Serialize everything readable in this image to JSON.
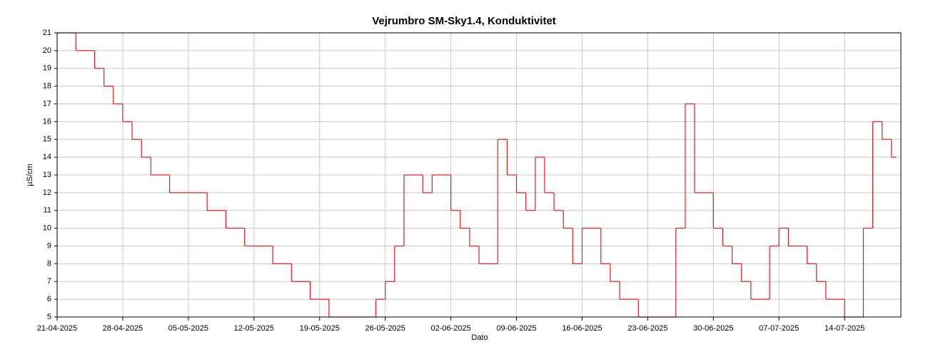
{
  "chart_data": {
    "type": "line",
    "title": "Vejrumbro SM-Sky1.4, Konduktivitet",
    "xlabel": "Dato",
    "ylabel": "µS/cm",
    "step": true,
    "grid": true,
    "x": [
      "2025-04-21",
      "2025-04-22",
      "2025-04-23",
      "2025-04-24",
      "2025-04-25",
      "2025-04-26",
      "2025-04-27",
      "2025-04-28",
      "2025-04-29",
      "2025-04-30",
      "2025-05-01",
      "2025-05-02",
      "2025-05-03",
      "2025-05-04",
      "2025-05-05",
      "2025-05-06",
      "2025-05-07",
      "2025-05-08",
      "2025-05-09",
      "2025-05-10",
      "2025-05-11",
      "2025-05-12",
      "2025-05-13",
      "2025-05-14",
      "2025-05-15",
      "2025-05-16",
      "2025-05-17",
      "2025-05-18",
      "2025-05-19",
      "2025-05-20",
      "2025-05-21",
      "2025-05-22",
      "2025-05-23",
      "2025-05-24",
      "2025-05-25",
      "2025-05-26",
      "2025-05-27",
      "2025-05-28",
      "2025-05-29",
      "2025-05-30",
      "2025-05-31",
      "2025-06-01",
      "2025-06-02",
      "2025-06-03",
      "2025-06-04",
      "2025-06-05",
      "2025-06-06",
      "2025-06-07",
      "2025-06-08",
      "2025-06-09",
      "2025-06-10",
      "2025-06-11",
      "2025-06-12",
      "2025-06-13",
      "2025-06-14",
      "2025-06-15",
      "2025-06-16",
      "2025-06-17",
      "2025-06-18",
      "2025-06-19",
      "2025-06-20",
      "2025-06-21",
      "2025-06-22",
      "2025-06-23",
      "2025-06-24",
      "2025-06-25",
      "2025-06-26",
      "2025-06-27",
      "2025-06-28",
      "2025-06-29",
      "2025-06-30",
      "2025-07-01",
      "2025-07-02",
      "2025-07-03",
      "2025-07-04",
      "2025-07-05",
      "2025-07-06",
      "2025-07-07",
      "2025-07-08",
      "2025-07-09",
      "2025-07-10",
      "2025-07-11",
      "2025-07-12",
      "2025-07-13",
      "2025-07-14",
      "2025-07-15",
      "2025-07-16",
      "2025-07-17",
      "2025-07-18",
      "2025-07-19"
    ],
    "series": [
      {
        "name": "Konduktivitet",
        "color": "#e8191c",
        "values": [
          21,
          21,
          20,
          20,
          19,
          18,
          17,
          16,
          15,
          14,
          13,
          13,
          12,
          12,
          12,
          12,
          11,
          11,
          10,
          10,
          9,
          9,
          9,
          8,
          8,
          7,
          7,
          6,
          6,
          5,
          5,
          5,
          5,
          5,
          6,
          7,
          9,
          13,
          13,
          12,
          13,
          13,
          11,
          10,
          9,
          8,
          8,
          15,
          13,
          12,
          11,
          14,
          12,
          11,
          10,
          8,
          10,
          10,
          8,
          7,
          6,
          6,
          5,
          5,
          5,
          5,
          10,
          17,
          12,
          12,
          10,
          9,
          8,
          7,
          6,
          6,
          9,
          10,
          9,
          9,
          8,
          7,
          6,
          6,
          5,
          5,
          10,
          16,
          15,
          14
        ]
      }
    ],
    "xlim": [
      "2025-04-21",
      "2025-07-20"
    ],
    "xticks": [
      {
        "value": "2025-04-21",
        "label": "21-04-2025"
      },
      {
        "value": "2025-04-28",
        "label": "28-04-2025"
      },
      {
        "value": "2025-05-05",
        "label": "05-05-2025"
      },
      {
        "value": "2025-05-12",
        "label": "12-05-2025"
      },
      {
        "value": "2025-05-19",
        "label": "19-05-2025"
      },
      {
        "value": "2025-05-26",
        "label": "26-05-2025"
      },
      {
        "value": "2025-06-02",
        "label": "02-06-2025"
      },
      {
        "value": "2025-06-09",
        "label": "09-06-2025"
      },
      {
        "value": "2025-06-16",
        "label": "16-06-2025"
      },
      {
        "value": "2025-06-23",
        "label": "23-06-2025"
      },
      {
        "value": "2025-06-30",
        "label": "30-06-2025"
      },
      {
        "value": "2025-07-07",
        "label": "07-07-2025"
      },
      {
        "value": "2025-07-14",
        "label": "14-07-2025"
      }
    ],
    "ylim": [
      5,
      21
    ],
    "yticks": [
      5,
      6,
      7,
      8,
      9,
      10,
      11,
      12,
      13,
      14,
      15,
      16,
      17,
      18,
      19,
      20,
      21
    ]
  }
}
